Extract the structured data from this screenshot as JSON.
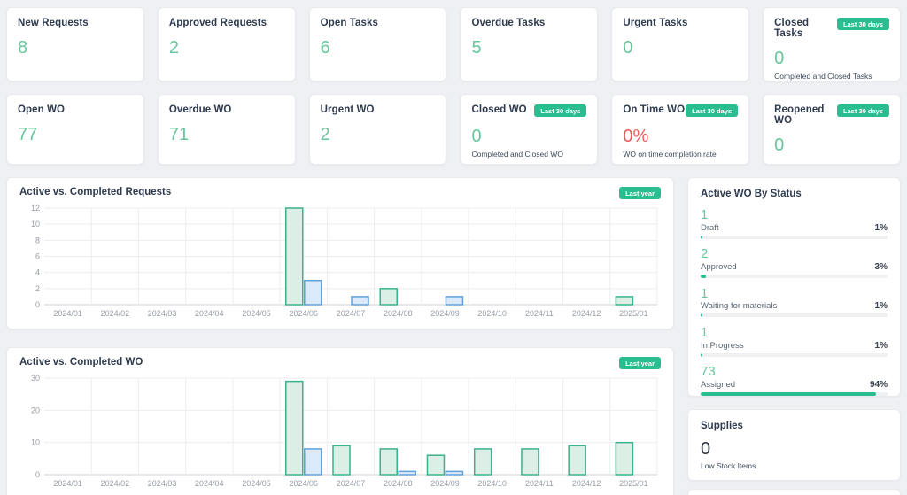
{
  "colors": {
    "accent_green": "#29bd8f",
    "value_green": "#67c69b",
    "value_red": "#f05b5b",
    "bar_green_stroke": "#3ab28a",
    "bar_green_fill": "#dcefe7",
    "bar_blue_stroke": "#60a1da",
    "bar_blue_fill": "#daeafa",
    "gridline": "#ededf1",
    "axis_line": "#cfd2d8",
    "axis_text": "#979ca6"
  },
  "kpi_rows": [
    [
      {
        "title": "New Requests",
        "value": "8",
        "color": "green"
      },
      {
        "title": "Approved Requests",
        "value": "2",
        "color": "green"
      },
      {
        "title": "Open Tasks",
        "value": "6",
        "color": "green"
      },
      {
        "title": "Overdue Tasks",
        "value": "5",
        "color": "green"
      },
      {
        "title": "Urgent Tasks",
        "value": "0",
        "color": "green"
      },
      {
        "title": "Closed Tasks",
        "value": "0",
        "color": "green",
        "badge": "Last 30 days",
        "subtitle": "Completed and Closed Tasks"
      }
    ],
    [
      {
        "title": "Open WO",
        "value": "77",
        "color": "green"
      },
      {
        "title": "Overdue WO",
        "value": "71",
        "color": "green"
      },
      {
        "title": "Urgent WO",
        "value": "2",
        "color": "green"
      },
      {
        "title": "Closed WO",
        "value": "0",
        "color": "green",
        "badge": "Last 30 days",
        "subtitle": "Completed and Closed WO"
      },
      {
        "title": "On Time WO",
        "value": "0%",
        "color": "red",
        "badge": "Last 30 days",
        "subtitle": "WO on time completion rate"
      },
      {
        "title": "Reopened WO",
        "value": "0",
        "color": "green",
        "badge": "Last 30 days"
      }
    ]
  ],
  "charts": [
    {
      "title": "Active vs. Completed Requests",
      "badge": "Last year",
      "chart_data": {
        "type": "bar",
        "categories": [
          "2024/01",
          "2024/02",
          "2024/03",
          "2024/04",
          "2024/05",
          "2024/06",
          "2024/07",
          "2024/08",
          "2024/09",
          "2024/10",
          "2024/11",
          "2024/12",
          "2025/01"
        ],
        "series": [
          {
            "name": "Active",
            "color": "green",
            "values": [
              0,
              0,
              0,
              0,
              0,
              12,
              0,
              2,
              0,
              0,
              0,
              0,
              1
            ]
          },
          {
            "name": "Completed",
            "color": "blue",
            "values": [
              0,
              0,
              0,
              0,
              0,
              3,
              1,
              0,
              1,
              0,
              0,
              0,
              0
            ]
          }
        ],
        "title": "Active vs. Completed Requests",
        "xlabel": "",
        "ylabel": "",
        "ylim": [
          0,
          12
        ],
        "ytick_step": 2,
        "grid": true,
        "legend": "none"
      }
    },
    {
      "title": "Active vs. Completed WO",
      "badge": "Last year",
      "chart_data": {
        "type": "bar",
        "categories": [
          "2024/01",
          "2024/02",
          "2024/03",
          "2024/04",
          "2024/05",
          "2024/06",
          "2024/07",
          "2024/08",
          "2024/09",
          "2024/10",
          "2024/11",
          "2024/12",
          "2025/01"
        ],
        "series": [
          {
            "name": "Active",
            "color": "green",
            "values": [
              0,
              0,
              0,
              0,
              0,
              29,
              9,
              8,
              6,
              8,
              8,
              9,
              10
            ]
          },
          {
            "name": "Completed",
            "color": "blue",
            "values": [
              0,
              0,
              0,
              0,
              0,
              8,
              0,
              1,
              1,
              0,
              0,
              0,
              0
            ]
          }
        ],
        "title": "Active vs. Completed WO",
        "xlabel": "",
        "ylabel": "",
        "ylim": [
          0,
          30
        ],
        "ytick_step": 10,
        "grid": true,
        "legend": "none"
      }
    }
  ],
  "status_panel": {
    "title": "Active WO By Status",
    "items": [
      {
        "value": "1",
        "label": "Draft",
        "percent": "1%"
      },
      {
        "value": "2",
        "label": "Approved",
        "percent": "3%"
      },
      {
        "value": "1",
        "label": "Waiting for materials",
        "percent": "1%"
      },
      {
        "value": "1",
        "label": "In Progress",
        "percent": "1%"
      },
      {
        "value": "73",
        "label": "Assigned",
        "percent": "94%"
      }
    ]
  },
  "supplies_panel": {
    "title": "Supplies",
    "value": "0",
    "subtitle": "Low Stock Items"
  }
}
